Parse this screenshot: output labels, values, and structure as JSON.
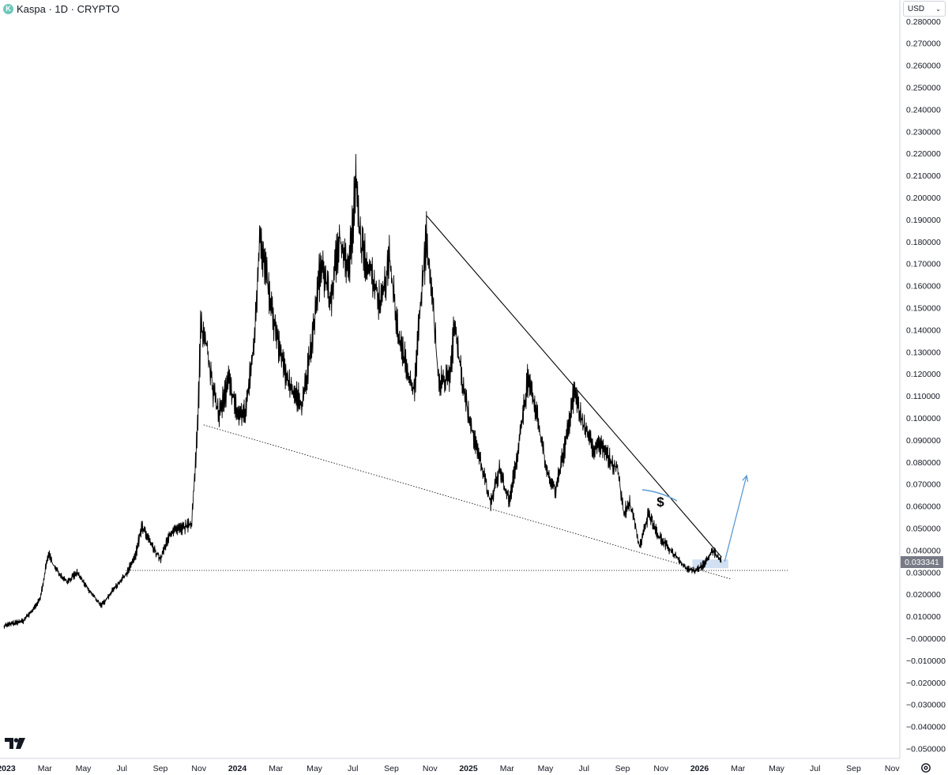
{
  "header": {
    "title": "Kaspa · 1D · CRYPTO",
    "icon": "kaspa-logo-icon"
  },
  "currency_selector": {
    "label": "USD",
    "icon": "chevron-down-icon"
  },
  "price_label": {
    "value": "0.033341",
    "color": "#787b86"
  },
  "colors": {
    "candles": "#000000",
    "trendline": "#000000",
    "projection_arrow": "#5b9bd5",
    "support_box": "#c5d8ef",
    "background": "#ffffff"
  },
  "chart_data": {
    "type": "line",
    "title": "Kaspa · 1D · CRYPTO",
    "xlabel": "",
    "ylabel": "",
    "y_ticks": [
      "0.280000",
      "0.270000",
      "0.260000",
      "0.250000",
      "0.240000",
      "0.230000",
      "0.220000",
      "0.210000",
      "0.200000",
      "0.190000",
      "0.180000",
      "0.170000",
      "0.160000",
      "0.150000",
      "0.140000",
      "0.130000",
      "0.120000",
      "0.110000",
      "0.100000",
      "0.090000",
      "0.080000",
      "0.070000",
      "0.060000",
      "0.050000",
      "0.040000",
      "0.030000",
      "0.020000",
      "0.010000",
      "−0.000000",
      "−0.010000",
      "−0.020000",
      "−0.030000",
      "−0.040000",
      "−0.050000"
    ],
    "x_ticks": [
      {
        "label": "2023",
        "bold": true
      },
      {
        "label": "Mar",
        "bold": false
      },
      {
        "label": "May",
        "bold": false
      },
      {
        "label": "Jul",
        "bold": false
      },
      {
        "label": "Sep",
        "bold": false
      },
      {
        "label": "Nov",
        "bold": false
      },
      {
        "label": "2024",
        "bold": true
      },
      {
        "label": "Mar",
        "bold": false
      },
      {
        "label": "May",
        "bold": false
      },
      {
        "label": "Jul",
        "bold": false
      },
      {
        "label": "Sep",
        "bold": false
      },
      {
        "label": "Nov",
        "bold": false
      },
      {
        "label": "2025",
        "bold": true
      },
      {
        "label": "Mar",
        "bold": false
      },
      {
        "label": "May",
        "bold": false
      },
      {
        "label": "Jul",
        "bold": false
      },
      {
        "label": "Sep",
        "bold": false
      },
      {
        "label": "Nov",
        "bold": false
      },
      {
        "label": "2026",
        "bold": true
      },
      {
        "label": "Mar",
        "bold": false
      },
      {
        "label": "May",
        "bold": false
      },
      {
        "label": "Jul",
        "bold": false
      },
      {
        "label": "Sep",
        "bold": false
      },
      {
        "label": "Nov",
        "bold": false
      }
    ],
    "ylim": [
      -0.05,
      0.28
    ],
    "series": [
      {
        "points": [
          [
            "2023-01-01",
            0.004
          ],
          [
            "2023-02-01",
            0.006
          ],
          [
            "2023-02-20",
            0.012
          ],
          [
            "2023-03-01",
            0.016
          ],
          [
            "2023-03-15",
            0.037
          ],
          [
            "2023-03-25",
            0.03
          ],
          [
            "2023-04-15",
            0.024
          ],
          [
            "2023-05-01",
            0.028
          ],
          [
            "2023-05-20",
            0.02
          ],
          [
            "2023-06-10",
            0.013
          ],
          [
            "2023-07-01",
            0.021
          ],
          [
            "2023-07-20",
            0.027
          ],
          [
            "2023-08-05",
            0.036
          ],
          [
            "2023-08-15",
            0.049
          ],
          [
            "2023-09-01",
            0.04
          ],
          [
            "2023-09-15",
            0.034
          ],
          [
            "2023-10-01",
            0.046
          ],
          [
            "2023-10-20",
            0.048
          ],
          [
            "2023-11-05",
            0.05
          ],
          [
            "2023-11-15",
            0.095
          ],
          [
            "2023-11-20",
            0.14
          ],
          [
            "2023-12-01",
            0.13
          ],
          [
            "2023-12-10",
            0.11
          ],
          [
            "2023-12-20",
            0.1
          ],
          [
            "2024-01-05",
            0.115
          ],
          [
            "2024-01-20",
            0.1
          ],
          [
            "2024-02-01",
            0.1
          ],
          [
            "2024-02-15",
            0.13
          ],
          [
            "2024-02-25",
            0.18
          ],
          [
            "2024-03-05",
            0.165
          ],
          [
            "2024-03-20",
            0.14
          ],
          [
            "2024-04-05",
            0.12
          ],
          [
            "2024-04-20",
            0.11
          ],
          [
            "2024-05-05",
            0.105
          ],
          [
            "2024-05-20",
            0.13
          ],
          [
            "2024-06-05",
            0.17
          ],
          [
            "2024-06-20",
            0.15
          ],
          [
            "2024-07-05",
            0.18
          ],
          [
            "2024-07-20",
            0.165
          ],
          [
            "2024-08-01",
            0.205
          ],
          [
            "2024-08-10",
            0.175
          ],
          [
            "2024-08-25",
            0.165
          ],
          [
            "2024-09-10",
            0.15
          ],
          [
            "2024-09-25",
            0.17
          ],
          [
            "2024-10-10",
            0.135
          ],
          [
            "2024-10-25",
            0.12
          ],
          [
            "2024-11-05",
            0.11
          ],
          [
            "2024-11-15",
            0.15
          ],
          [
            "2024-11-25",
            0.18
          ],
          [
            "2024-12-05",
            0.15
          ],
          [
            "2024-12-15",
            0.115
          ],
          [
            "2025-01-01",
            0.115
          ],
          [
            "2025-01-10",
            0.14
          ],
          [
            "2025-01-25",
            0.11
          ],
          [
            "2025-02-10",
            0.09
          ],
          [
            "2025-02-25",
            0.075
          ],
          [
            "2025-03-10",
            0.06
          ],
          [
            "2025-03-25",
            0.075
          ],
          [
            "2025-04-10",
            0.06
          ],
          [
            "2025-04-25",
            0.085
          ],
          [
            "2025-05-10",
            0.115
          ],
          [
            "2025-05-25",
            0.1
          ],
          [
            "2025-06-10",
            0.075
          ],
          [
            "2025-06-25",
            0.065
          ],
          [
            "2025-07-10",
            0.085
          ],
          [
            "2025-07-25",
            0.11
          ],
          [
            "2025-08-10",
            0.095
          ],
          [
            "2025-08-25",
            0.085
          ],
          [
            "2025-09-10",
            0.085
          ],
          [
            "2025-09-25",
            0.078
          ],
          [
            "2025-10-05",
            0.075
          ],
          [
            "2025-10-15",
            0.055
          ],
          [
            "2025-10-25",
            0.06
          ],
          [
            "2025-11-10",
            0.04
          ],
          [
            "2025-11-25",
            0.055
          ],
          [
            "2025-12-10",
            0.045
          ],
          [
            "2025-12-25",
            0.04
          ],
          [
            "2026-01-10",
            0.035
          ],
          [
            "2026-01-25",
            0.03
          ],
          [
            "2026-02-10",
            0.029
          ],
          [
            "2026-02-25",
            0.032
          ],
          [
            "2026-03-10",
            0.038
          ],
          [
            "2026-03-25",
            0.033
          ]
        ]
      }
    ],
    "annotations": [
      {
        "type": "trendline",
        "label": "",
        "from": [
          "2024-11-25",
          0.19
        ],
        "to": [
          "2026-03-25",
          0.035
        ]
      },
      {
        "type": "trendline",
        "label": "",
        "from": [
          "2023-11-25",
          0.095
        ],
        "to": [
          "2026-04-10",
          0.025
        ]
      },
      {
        "type": "hline",
        "label": "",
        "value": 0.029
      },
      {
        "type": "text",
        "label": "$"
      },
      {
        "type": "arrow",
        "label": "",
        "from": [
          "2026-03-30",
          0.033
        ],
        "to": [
          "2026-05-05",
          0.072
        ]
      }
    ],
    "grid": false,
    "legend": "none"
  }
}
